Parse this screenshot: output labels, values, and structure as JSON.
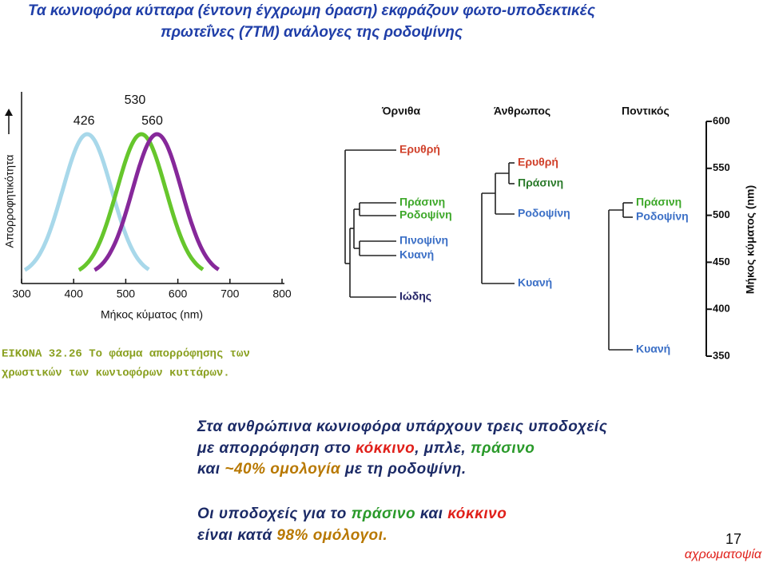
{
  "title": [
    "Τα κωνιοφόρα κύτταρα (έντονη έγχρωμη όραση) εκφράζουν φωτο-υποδεκτικές",
    "πρωτεΐνες (7ΤΜ) ανάλογες της ροδοψίνης"
  ],
  "spectrum": {
    "type": "line",
    "x_label": "Μήκος κύματος (nm)",
    "y_label": "Απορροφητικότητα",
    "xlim": [
      300,
      800
    ],
    "xticks": [
      300,
      400,
      500,
      600,
      700,
      800
    ],
    "curves": [
      {
        "peak": 426,
        "color": "#a8d8ea"
      },
      {
        "peak": 530,
        "color": "#66c62c"
      },
      {
        "peak": 560,
        "color": "#86289a"
      }
    ]
  },
  "caption": [
    "ΕΙΚΟΝΑ 32.26 Το φάσμα απορρόφησης των",
    "χρωστικών των κωνιοφόρων κυττάρων."
  ],
  "trees": [
    {
      "title": "Όρνιθα",
      "leaves": [
        "Ερυθρή",
        "Πράσινη",
        "Ροδοψίνη",
        "Πινοψίνη",
        "Κυανή",
        "Ιώδης"
      ]
    },
    {
      "title": "Άνθρωπος",
      "leaves": [
        "Ερυθρή",
        "Πράσινη",
        "Ροδοψίνη",
        "Κυανή"
      ]
    },
    {
      "title": "Ποντικός",
      "leaves": [
        "Πράσινη",
        "Ροδοψίνη",
        "Κυανή"
      ]
    }
  ],
  "scale": {
    "label": "Μήκος κύματος (nm)",
    "lim": [
      350,
      600
    ],
    "ticks": [
      600,
      550,
      500,
      450,
      400,
      350
    ]
  },
  "body": {
    "para1": [
      [
        "Στα ανθρώπινα κωνιοφόρα υπάρχουν τρεις υποδοχείς"
      ],
      [
        "με απορρόφηση στο ",
        "κόκκινο",
        ", μπλε, ",
        "πράσινο"
      ],
      [
        "και ",
        "~40% ομολογία",
        " με τη ροδοψίνη."
      ]
    ],
    "para2": [
      [
        "Οι υποδοχείς για το ",
        "πράσινο",
        " και ",
        "κόκκινο"
      ],
      [
        "είναι κατά ",
        "98% ομόλογοι."
      ]
    ]
  },
  "page_number": 17,
  "footer": "αχρωματοψία"
}
